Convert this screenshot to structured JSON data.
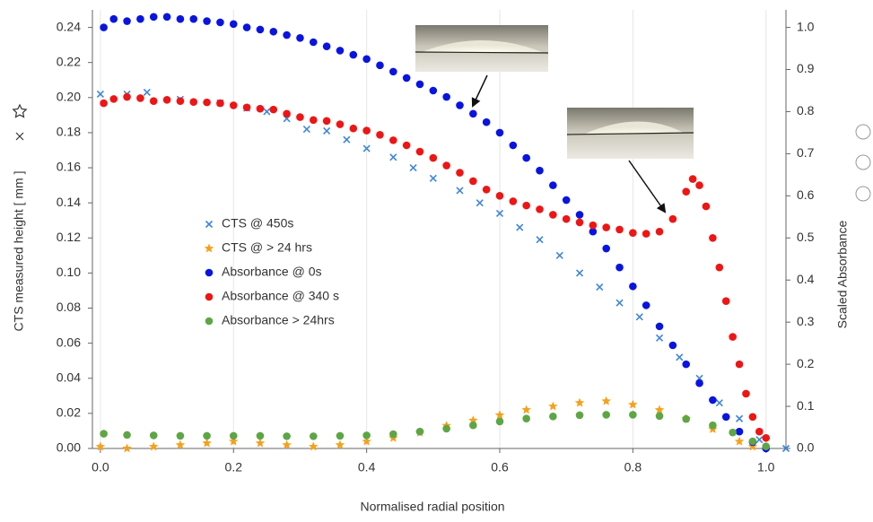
{
  "chart_data": {
    "type": "scatter",
    "x_label": "Normalised radial position",
    "y_label": "CTS measured height [ mm ]",
    "y2_label": "Scaled Absorbance",
    "xlim": [
      -0.012,
      1.03
    ],
    "xticks": [
      {
        "value": 0,
        "label": "0.0"
      },
      {
        "value": 0.2,
        "label": "0.2"
      },
      {
        "value": 0.4,
        "label": "0.4"
      },
      {
        "value": 0.6,
        "label": "0.6"
      },
      {
        "value": 0.8,
        "label": "0.8"
      },
      {
        "value": 1,
        "label": "1.0"
      }
    ],
    "ylim": [
      0,
      0.25
    ],
    "yticks": [
      {
        "value": 0,
        "label": "0.00"
      },
      0.02,
      0.04,
      0.06,
      0.08,
      {
        "value": 0.1,
        "label": "0.10"
      },
      0.12,
      0.14,
      0.16,
      0.18,
      {
        "value": 0.2,
        "label": "0.20"
      },
      0.22,
      0.24
    ],
    "y2lim": [
      0,
      1.0417
    ],
    "y2ticks": [
      {
        "value": 0,
        "label": "0.0"
      },
      0.1,
      0.2,
      0.3,
      0.4,
      0.5,
      0.6,
      0.7,
      0.8,
      0.9,
      {
        "value": 1,
        "label": "1.0"
      }
    ],
    "grid": true,
    "series": [
      {
        "name": "CTS @ 450s",
        "color": "#3f86d8",
        "marker": "x",
        "x": [
          0.0,
          0.04,
          0.07,
          0.12,
          0.18,
          0.22,
          0.25,
          0.28,
          0.31,
          0.34,
          0.37,
          0.4,
          0.44,
          0.47,
          0.5,
          0.54,
          0.57,
          0.6,
          0.63,
          0.66,
          0.69,
          0.72,
          0.75,
          0.78,
          0.81,
          0.84,
          0.87,
          0.9,
          0.93,
          0.96,
          0.99,
          1.03
        ],
        "values": [
          0.202,
          0.202,
          0.203,
          0.199,
          0.197,
          0.194,
          0.192,
          0.188,
          0.182,
          0.181,
          0.176,
          0.171,
          0.166,
          0.16,
          0.154,
          0.147,
          0.14,
          0.134,
          0.126,
          0.119,
          0.11,
          0.1,
          0.092,
          0.083,
          0.075,
          0.063,
          0.052,
          0.04,
          0.026,
          0.017,
          0.005,
          0
        ]
      },
      {
        "name": "CTS @  > 24 hrs",
        "color": "#f5a11c",
        "marker": "star",
        "x": [
          0.0,
          0.04,
          0.08,
          0.12,
          0.16,
          0.2,
          0.24,
          0.28,
          0.32,
          0.36,
          0.4,
          0.44,
          0.48,
          0.52,
          0.56,
          0.6,
          0.64,
          0.68,
          0.72,
          0.76,
          0.8,
          0.84,
          0.88,
          0.92,
          0.96,
          0.98
        ],
        "values": [
          0.001,
          0,
          0.001,
          0.002,
          0.003,
          0.004,
          0.003,
          0.002,
          0.001,
          0.002,
          0.004,
          0.006,
          0.009,
          0.013,
          0.016,
          0.019,
          0.022,
          0.024,
          0.026,
          0.027,
          0.025,
          0.022,
          0.017,
          0.011,
          0.004,
          0.001
        ]
      },
      {
        "name": "Absorbance @ 0s",
        "color": "#0a14e0",
        "marker": "circle",
        "axis": "y2",
        "x": [
          0.005,
          0.02,
          0.04,
          0.06,
          0.08,
          0.1,
          0.12,
          0.14,
          0.16,
          0.18,
          0.2,
          0.22,
          0.24,
          0.26,
          0.28,
          0.3,
          0.32,
          0.34,
          0.36,
          0.38,
          0.4,
          0.42,
          0.44,
          0.46,
          0.48,
          0.5,
          0.52,
          0.54,
          0.56,
          0.58,
          0.6,
          0.62,
          0.64,
          0.66,
          0.68,
          0.7,
          0.72,
          0.74,
          0.76,
          0.78,
          0.8,
          0.82,
          0.84,
          0.86,
          0.88,
          0.9,
          0.92,
          0.94,
          0.96,
          0.98,
          1.0
        ],
        "values": [
          1.0,
          1.02,
          1.015,
          1.02,
          1.025,
          1.025,
          1.02,
          1.02,
          1.015,
          1.012,
          1.008,
          1.0,
          0.995,
          0.99,
          0.982,
          0.975,
          0.965,
          0.955,
          0.945,
          0.935,
          0.925,
          0.91,
          0.895,
          0.88,
          0.865,
          0.85,
          0.835,
          0.815,
          0.795,
          0.775,
          0.75,
          0.72,
          0.69,
          0.66,
          0.625,
          0.59,
          0.555,
          0.515,
          0.475,
          0.43,
          0.385,
          0.34,
          0.29,
          0.245,
          0.2,
          0.155,
          0.115,
          0.075,
          0.04,
          0.015,
          0.0
        ]
      },
      {
        "name": "Absorbance @ 340 s",
        "color": "#ee1515",
        "marker": "circle",
        "axis": "y2",
        "x": [
          0.005,
          0.02,
          0.04,
          0.06,
          0.08,
          0.1,
          0.12,
          0.14,
          0.16,
          0.18,
          0.2,
          0.22,
          0.24,
          0.26,
          0.28,
          0.3,
          0.32,
          0.34,
          0.36,
          0.38,
          0.4,
          0.42,
          0.44,
          0.46,
          0.48,
          0.5,
          0.52,
          0.54,
          0.56,
          0.58,
          0.6,
          0.62,
          0.64,
          0.66,
          0.68,
          0.7,
          0.72,
          0.74,
          0.76,
          0.78,
          0.8,
          0.82,
          0.84,
          0.86,
          0.88,
          0.89,
          0.9,
          0.91,
          0.92,
          0.93,
          0.94,
          0.95,
          0.96,
          0.97,
          0.98,
          0.99,
          1.0
        ],
        "values": [
          0.82,
          0.83,
          0.835,
          0.832,
          0.825,
          0.828,
          0.825,
          0.823,
          0.822,
          0.82,
          0.815,
          0.81,
          0.807,
          0.805,
          0.795,
          0.787,
          0.78,
          0.778,
          0.77,
          0.76,
          0.755,
          0.745,
          0.732,
          0.72,
          0.705,
          0.69,
          0.672,
          0.655,
          0.635,
          0.615,
          0.6,
          0.587,
          0.577,
          0.568,
          0.555,
          0.545,
          0.537,
          0.53,
          0.525,
          0.52,
          0.512,
          0.51,
          0.515,
          0.545,
          0.61,
          0.64,
          0.625,
          0.575,
          0.5,
          0.43,
          0.35,
          0.265,
          0.2,
          0.13,
          0.075,
          0.04,
          0.025
        ]
      },
      {
        "name": "Absorbance > 24hrs",
        "color": "#5ea645",
        "marker": "circle",
        "axis": "y2",
        "x": [
          0.005,
          0.04,
          0.08,
          0.12,
          0.16,
          0.2,
          0.24,
          0.28,
          0.32,
          0.36,
          0.4,
          0.44,
          0.48,
          0.52,
          0.56,
          0.6,
          0.64,
          0.68,
          0.72,
          0.76,
          0.8,
          0.84,
          0.88,
          0.92,
          0.95,
          0.98,
          1.0
        ],
        "values": [
          0.035,
          0.032,
          0.031,
          0.03,
          0.03,
          0.03,
          0.03,
          0.029,
          0.029,
          0.03,
          0.031,
          0.034,
          0.04,
          0.047,
          0.055,
          0.064,
          0.071,
          0.076,
          0.079,
          0.08,
          0.08,
          0.077,
          0.07,
          0.055,
          0.038,
          0.017,
          0.005
        ]
      }
    ]
  }
}
